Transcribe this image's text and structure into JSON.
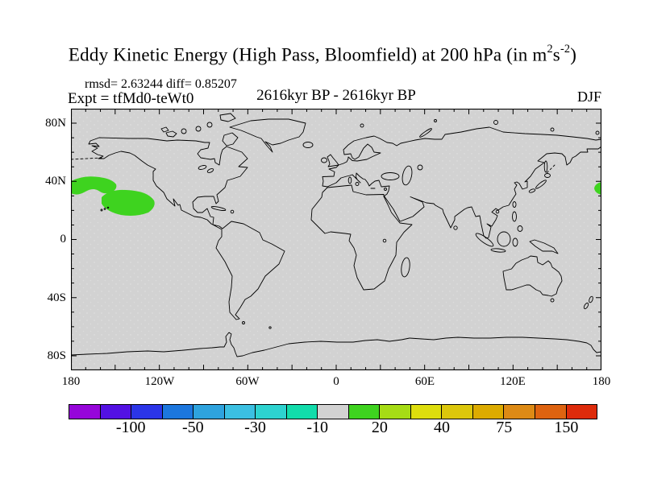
{
  "header": {
    "title_prefix": "Eddy Kinetic Energy (High Pass, Bloomfield) at 200 hPa (in m",
    "title_sup1": "2",
    "title_mid": "s",
    "title_sup2": "-2",
    "title_suffix": ")",
    "stats": "rmsd= 2.63244 diff= 0.85207",
    "experiment": "Expt = tfMd0-teWt0",
    "period": "2616kyr BP - 2616kyr BP",
    "season": "DJF"
  },
  "map": {
    "lat_labels": [
      "80N",
      "40N",
      "0",
      "40S",
      "80S"
    ],
    "lon_labels": [
      "180",
      "120W",
      "60W",
      "0",
      "60E",
      "120E",
      "180"
    ],
    "background_color": "#d2d2d2",
    "coastline_color": "#000000",
    "anomaly_color": "#3ed31f"
  },
  "colorbar": {
    "colors": [
      "#9606da",
      "#5311e3",
      "#2b35e8",
      "#1c77de",
      "#2ea3de",
      "#3bc0e2",
      "#2dd3d0",
      "#12dcab",
      "#d2d2d2",
      "#3ed31f",
      "#a6dc15",
      "#dede0d",
      "#dcc70b",
      "#dcab00",
      "#dd8a15",
      "#de6310",
      "#de2b0b"
    ],
    "labels": [
      "-100",
      "-50",
      "-30",
      "-10",
      "20",
      "40",
      "75",
      "150"
    ],
    "label_boundaries": [
      2,
      4,
      6,
      8,
      10,
      12,
      14,
      16
    ]
  },
  "chart_data": {
    "type": "heatmap",
    "title": "Eddy Kinetic Energy (High Pass, Bloomfield) at 200 hPa (in m2 s-2)",
    "subtitle": "2616kyr BP - 2616kyr BP",
    "season": "DJF",
    "experiment": "tfMd0-teWt0",
    "rmsd": 2.63244,
    "diff": 0.85207,
    "units": "m2 s-2",
    "pressure_level_hPa": 200,
    "projection": "equirectangular world map",
    "x": {
      "label": "longitude",
      "range_deg": [
        -180,
        180
      ],
      "ticks": [
        "180",
        "120W",
        "60W",
        "0",
        "60E",
        "120E",
        "180"
      ],
      "minor_tick_deg": 10,
      "major_tick_deg": 30
    },
    "y": {
      "label": "latitude",
      "range_deg": [
        -90,
        90
      ],
      "ticks": [
        "80N",
        "40N",
        "0",
        "40S",
        "80S"
      ],
      "minor_tick_deg": 10,
      "major_tick_deg": 40
    },
    "colorbar_tick_values": [
      -100,
      -50,
      -30,
      -10,
      20,
      40,
      75,
      150
    ],
    "field": "difference of eddy kinetic energy between experiments; nearly everywhere in the lowest contour band (gray, -10 to 10)",
    "anomaly_regions": [
      {
        "description": "positive anomaly band (10-20 m2/s2), North Pacific west of North America",
        "lon_range": [
          -180,
          -130
        ],
        "lat_range": [
          18,
          42
        ]
      },
      {
        "description": "small positive anomaly touching the dateline near 38N (wrap of Pacific blob)",
        "lon_range": [
          175,
          180
        ],
        "lat_range": [
          32,
          40
        ]
      }
    ],
    "legend_position": "horizontal colorbar below map",
    "grid": false
  }
}
